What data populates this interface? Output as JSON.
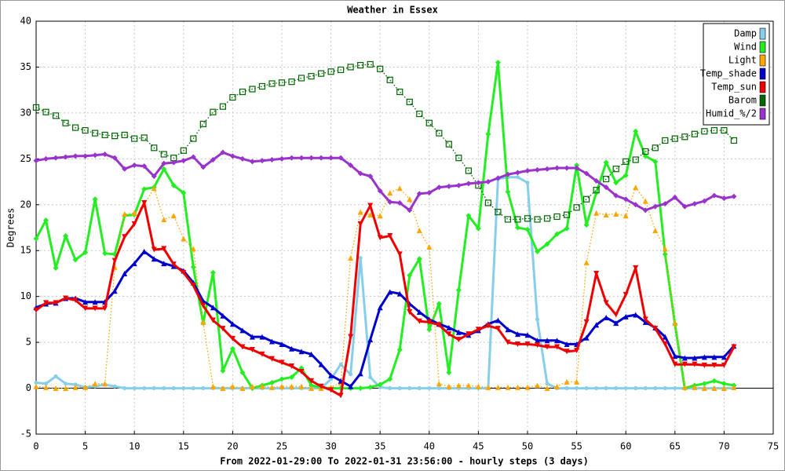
{
  "chart_data": {
    "type": "line",
    "title": "Weather in Essex",
    "x_label": "From 2022-01-29:00 To 2022-01-31 23:56:00 - hourly steps (3 days)",
    "y_label": "Degrees",
    "x": [
      0,
      1,
      2,
      3,
      4,
      5,
      6,
      7,
      8,
      9,
      10,
      11,
      12,
      13,
      14,
      15,
      16,
      17,
      18,
      19,
      20,
      21,
      22,
      23,
      24,
      25,
      26,
      27,
      28,
      29,
      30,
      31,
      32,
      33,
      34,
      35,
      36,
      37,
      38,
      39,
      40,
      41,
      42,
      43,
      44,
      45,
      46,
      47,
      48,
      49,
      50,
      51,
      52,
      53,
      54,
      55,
      56,
      57,
      58,
      59,
      60,
      61,
      62,
      63,
      64,
      65,
      66,
      67,
      68,
      69,
      70,
      71
    ],
    "xlim": [
      0,
      75
    ],
    "xticks": [
      0,
      5,
      10,
      15,
      20,
      25,
      30,
      35,
      40,
      45,
      50,
      55,
      60,
      65,
      70,
      75
    ],
    "ylim": [
      -5,
      40
    ],
    "yticks": [
      -5,
      0,
      5,
      10,
      15,
      20,
      25,
      30,
      35,
      40
    ],
    "grid": true,
    "legend": "upper right",
    "series": [
      {
        "name": "Damp",
        "color": "#87ceeb",
        "marker": "circle",
        "dashed": false,
        "values": [
          0.6,
          0.5,
          1.3,
          0.5,
          0.4,
          0.1,
          0.2,
          0.4,
          0.2,
          0,
          0,
          0,
          0,
          0,
          0,
          0,
          0,
          0,
          0,
          0,
          0,
          0,
          0,
          0,
          0,
          0,
          0,
          0,
          0,
          0,
          1.0,
          2.6,
          1.5,
          14.2,
          1.2,
          0.1,
          0,
          0,
          0,
          0,
          0,
          0,
          0,
          0,
          0,
          0,
          0,
          22.8,
          23,
          23,
          22.4,
          7.5,
          0.5,
          0,
          0,
          0,
          0,
          0,
          0,
          0,
          0,
          0,
          0,
          0,
          0,
          0,
          0,
          0,
          0,
          0,
          0,
          0
        ]
      },
      {
        "name": "Wind",
        "color": "#22ee22",
        "marker": "diamond",
        "dashed": false,
        "values": [
          16.3,
          18.3,
          13.1,
          16.6,
          14,
          14.8,
          20.6,
          14.7,
          14.6,
          18.8,
          18.9,
          21.7,
          21.9,
          23.9,
          22.1,
          21.3,
          13.2,
          7.1,
          12.6,
          1.9,
          4.3,
          1.7,
          0,
          0.3,
          0.6,
          1.0,
          1.2,
          2.2,
          0.3,
          0.1,
          0,
          0,
          0,
          0,
          0.1,
          0.4,
          1.0,
          4.2,
          12.3,
          14.1,
          6.4,
          9.2,
          1.7,
          10.7,
          18.8,
          17.4,
          27.7,
          35.5,
          21.4,
          17.5,
          17.3,
          14.9,
          15.7,
          16.8,
          17.4,
          24.3,
          17.8,
          21.3,
          24.6,
          22.4,
          23.2,
          28.0,
          25.3,
          24.7,
          14.6,
          7.0,
          0,
          0.3,
          0.5,
          0.8,
          0.5,
          0.3
        ]
      },
      {
        "name": "Light",
        "color": "#ffa500",
        "marker": "up",
        "dashed": true,
        "values": [
          0.2,
          0.1,
          0,
          0,
          0.1,
          0.1,
          0.5,
          0.5,
          13.2,
          19,
          19.1,
          20,
          21.8,
          18.4,
          18.8,
          16.3,
          15.2,
          7.2,
          0.2,
          0,
          0.2,
          0,
          0.2,
          0.2,
          0.1,
          0.2,
          0.2,
          0.2,
          0,
          0,
          0.1,
          0.6,
          14.2,
          19.2,
          18.9,
          18.8,
          21.3,
          21.8,
          20.6,
          17.2,
          15.4,
          0.5,
          0.2,
          0.3,
          0.3,
          0.2,
          0.1,
          0.1,
          0.1,
          0.1,
          0.1,
          0.3,
          0,
          0.2,
          0.7,
          0.7,
          13.7,
          19.1,
          18.9,
          19,
          18.8,
          21.9,
          20.4,
          17.2,
          15.2,
          7.1,
          0.1,
          0.1,
          0,
          0,
          0,
          0.1
        ]
      },
      {
        "name": "Temp_shade",
        "color": "#0000cc",
        "marker": "up",
        "dashed": false,
        "values": [
          8.8,
          9.2,
          9.3,
          9.8,
          9.8,
          9.4,
          9.4,
          9.4,
          10.6,
          12.5,
          13.6,
          14.9,
          14.1,
          13.6,
          13.3,
          12.8,
          11.5,
          9.5,
          8.8,
          7.9,
          7.0,
          6.3,
          5.6,
          5.6,
          5.1,
          4.8,
          4.3,
          4.0,
          3.7,
          2.6,
          1.4,
          0.8,
          0.2,
          1.6,
          5.3,
          8.8,
          10.5,
          10.3,
          9.2,
          8.3,
          7.5,
          7.0,
          6.6,
          6.1,
          5.8,
          6.3,
          7.0,
          7.4,
          6.4,
          5.9,
          5.8,
          5.2,
          5.2,
          5.2,
          4.8,
          4.8,
          5.5,
          6.9,
          7.7,
          7.1,
          7.8,
          8.0,
          7.2,
          6.6,
          5.6,
          3.5,
          3.3,
          3.3,
          3.4,
          3.4,
          3.4,
          4.6
        ]
      },
      {
        "name": "Temp_sun",
        "color": "#ee0000",
        "marker": "down",
        "dashed": false,
        "values": [
          8.5,
          9.3,
          9.3,
          9.8,
          9.6,
          8.7,
          8.7,
          8.7,
          13.9,
          16.5,
          17.9,
          20.2,
          15.1,
          15.2,
          13.5,
          12.6,
          11.2,
          9.0,
          7.4,
          6.5,
          5.4,
          4.5,
          4.2,
          3.7,
          3.2,
          2.8,
          2.4,
          1.8,
          0.8,
          0.2,
          -0.2,
          -0.8,
          5.6,
          17.9,
          19.9,
          16.4,
          16.6,
          14.6,
          8.3,
          7.3,
          7.2,
          6.9,
          5.9,
          5.3,
          5.9,
          6.4,
          6.8,
          6.5,
          5.0,
          4.8,
          4.8,
          4.7,
          4.5,
          4.5,
          4.0,
          4.1,
          7.2,
          12.5,
          9.3,
          8.0,
          10.2,
          13.1,
          7.5,
          6.5,
          4.8,
          2.6,
          2.6,
          2.6,
          2.5,
          2.5,
          2.5,
          4.5
        ]
      },
      {
        "name": "Barom",
        "color": "#006600",
        "marker": "square",
        "dashed": true,
        "values": [
          30.6,
          30.1,
          29.7,
          28.9,
          28.4,
          28.1,
          27.8,
          27.6,
          27.5,
          27.6,
          27.2,
          27.3,
          26.2,
          25.5,
          25.1,
          25.9,
          27.2,
          28.8,
          30.1,
          30.7,
          31.7,
          32.3,
          32.6,
          32.9,
          33.2,
          33.3,
          33.4,
          33.8,
          34.0,
          34.3,
          34.5,
          34.7,
          35.0,
          35.2,
          35.3,
          34.8,
          33.6,
          32.3,
          31.2,
          29.9,
          28.9,
          27.8,
          26.6,
          25.1,
          23.7,
          22.1,
          20.2,
          19.2,
          18.4,
          18.4,
          18.5,
          18.4,
          18.5,
          18.7,
          18.9,
          19.7,
          20.6,
          21.6,
          22.8,
          23.9,
          24.7,
          24.9,
          25.8,
          26.2,
          27.0,
          27.2,
          27.4,
          27.7,
          28.0,
          28.1,
          28.1,
          27.0
        ]
      },
      {
        "name": "Humid_%/2",
        "color": "#9933cc",
        "marker": "diamond",
        "dashed": false,
        "values": [
          24.8,
          25.0,
          25.1,
          25.2,
          25.3,
          25.3,
          25.4,
          25.5,
          25.1,
          23.9,
          24.3,
          24.2,
          23.1,
          24.5,
          24.6,
          24.8,
          25.2,
          24.1,
          24.9,
          25.7,
          25.3,
          25.0,
          24.7,
          24.8,
          24.9,
          25.0,
          25.1,
          25.1,
          25.1,
          25.1,
          25.1,
          25.1,
          24.3,
          23.4,
          23.1,
          21.5,
          20.3,
          20.2,
          19.4,
          21.2,
          21.3,
          21.9,
          22.0,
          22.1,
          22.3,
          22.4,
          22.5,
          22.9,
          23.3,
          23.5,
          23.7,
          23.8,
          23.9,
          24.0,
          24.0,
          24.0,
          23.4,
          22.6,
          21.9,
          21.0,
          20.6,
          20.0,
          19.4,
          19.8,
          20.1,
          20.8,
          19.8,
          20.1,
          20.4,
          21.0,
          20.7,
          20.9
        ]
      }
    ]
  }
}
